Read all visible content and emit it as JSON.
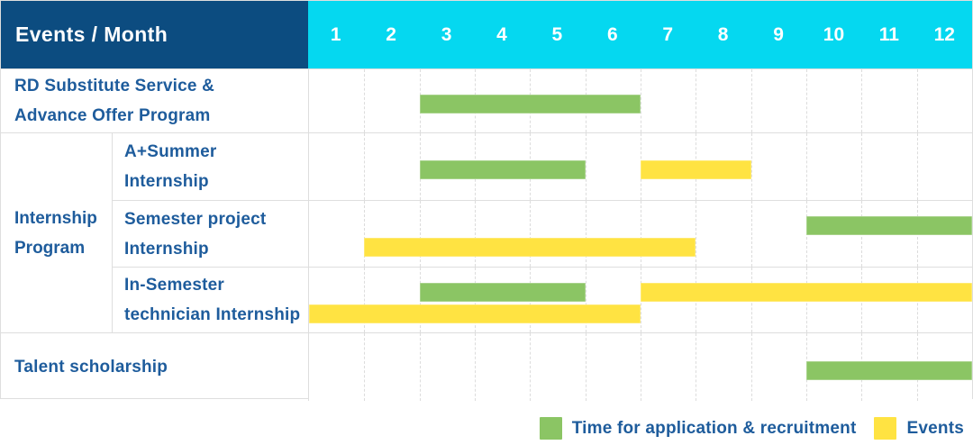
{
  "header": {
    "title": "Events / Month",
    "months": [
      "1",
      "2",
      "3",
      "4",
      "5",
      "6",
      "7",
      "8",
      "9",
      "10",
      "11",
      "12"
    ]
  },
  "colors": {
    "navy": "#0C4C80",
    "cyan": "#05D8F0",
    "green": "#8BC564",
    "yellow": "#FFE342",
    "label_blue": "#1E5C9C",
    "border": "#DEDEDE",
    "grid": "#DCDCDC"
  },
  "legend": {
    "items": [
      {
        "color_key": "green",
        "label": "Time for application & recruitment"
      },
      {
        "color_key": "yellow",
        "label": "Events"
      }
    ]
  },
  "chart_data": {
    "type": "gantt",
    "x_axis": {
      "unit": "month",
      "range": [
        1,
        12
      ],
      "ticks": [
        "1",
        "2",
        "3",
        "4",
        "5",
        "6",
        "7",
        "8",
        "9",
        "10",
        "11",
        "12"
      ]
    },
    "legend_position": "bottom-right",
    "grid": "dashed-vertical-month-lines",
    "series_legend": {
      "green": "Time for application & recruitment",
      "yellow": "Events"
    },
    "group_label": "Internship Program",
    "group_label_lines": [
      "Internship",
      "Program"
    ],
    "rows": [
      {
        "label": "RD Substitute Service & Advance Offer Program",
        "label_lines": [
          "RD Substitute Service &",
          "Advance Offer Program"
        ],
        "group": null,
        "bars": [
          {
            "color_key": "green",
            "series": "Time for application & recruitment",
            "start_month": 3,
            "end_month": 6,
            "line": 0
          }
        ]
      },
      {
        "label": "A+Summer Internship",
        "label_lines": [
          "A+Summer",
          "Internship"
        ],
        "group": "Internship Program",
        "bars": [
          {
            "color_key": "green",
            "series": "Time for application & recruitment",
            "start_month": 3,
            "end_month": 5,
            "line": 0
          },
          {
            "color_key": "yellow",
            "series": "Events",
            "start_month": 7,
            "end_month": 8,
            "line": 0
          }
        ]
      },
      {
        "label": "Semester project Internship",
        "label_lines": [
          "Semester project",
          "Internship"
        ],
        "group": "Internship Program",
        "bars": [
          {
            "color_key": "green",
            "series": "Time for application & recruitment",
            "start_month": 10,
            "end_month": 12,
            "line": 0
          },
          {
            "color_key": "yellow",
            "series": "Events",
            "start_month": 2,
            "end_month": 7,
            "line": 1
          }
        ]
      },
      {
        "label": "In-Semester technician Internship",
        "label_lines": [
          "In-Semester",
          "technician Internship"
        ],
        "group": "Internship Program",
        "bars": [
          {
            "color_key": "green",
            "series": "Time for application & recruitment",
            "start_month": 3,
            "end_month": 5,
            "line": 0
          },
          {
            "color_key": "yellow",
            "series": "Events",
            "start_month": 7,
            "end_month": 12,
            "line": 0
          },
          {
            "color_key": "yellow",
            "series": "Events",
            "start_month": 1,
            "end_month": 6,
            "line": 1
          }
        ]
      },
      {
        "label": "Talent scholarship",
        "label_lines": [
          "Talent scholarship"
        ],
        "group": null,
        "bars": [
          {
            "color_key": "green",
            "series": "Time for application & recruitment",
            "start_month": 10,
            "end_month": 12,
            "line": 0
          }
        ]
      }
    ]
  }
}
